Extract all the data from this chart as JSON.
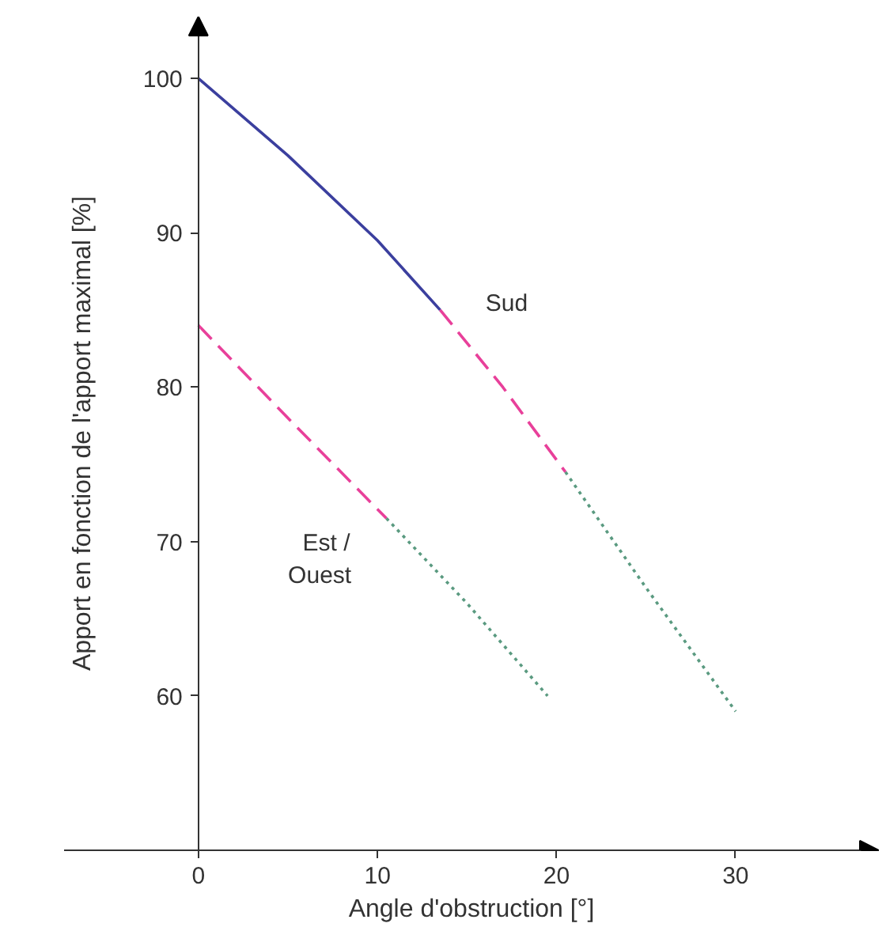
{
  "chart_data": {
    "type": "line",
    "xlabel": "Angle d'obstruction [°]",
    "ylabel": "Apport en fonction de l'apport maximal [%]",
    "xlim": [
      -7.5,
      38
    ],
    "ylim": [
      50,
      104
    ],
    "xticks": [
      0,
      10,
      20,
      30
    ],
    "yticks": [
      60,
      70,
      80,
      90,
      100
    ],
    "grid": false,
    "legend": false,
    "marker": "none",
    "series": [
      {
        "color": "#3b3f9e",
        "line_style": "solid",
        "x": [
          0,
          5,
          10,
          13.5
        ],
        "values": [
          100,
          95,
          89.5,
          85
        ]
      },
      {
        "name": "Sud",
        "color": "#e8409a",
        "line_style": "dashed",
        "x": [
          13.5,
          17,
          20.5
        ],
        "values": [
          85,
          80,
          74.5
        ]
      },
      {
        "color": "#5a9a80",
        "line_style": "dotted",
        "x": [
          20.5,
          25,
          30
        ],
        "values": [
          74.5,
          67,
          59
        ]
      },
      {
        "name": "Est /\n  Ouest",
        "color": "#e8409a",
        "line_style": "dashed",
        "x": [
          0,
          5,
          10.5
        ],
        "values": [
          84,
          78,
          71.5
        ]
      },
      {
        "color": "#5a9a80",
        "line_style": "dotted",
        "x": [
          10.5,
          15,
          19.5
        ],
        "values": [
          71.5,
          66,
          60
        ]
      }
    ]
  }
}
